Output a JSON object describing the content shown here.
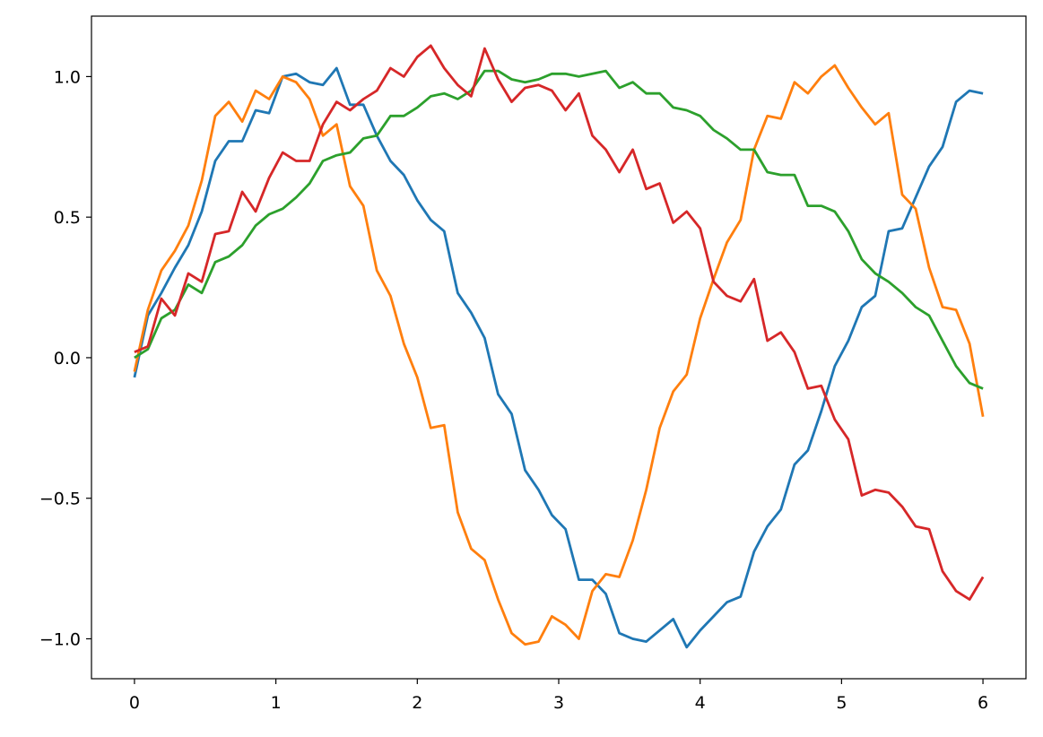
{
  "chart_data": {
    "type": "line",
    "title": "",
    "xlabel": "",
    "ylabel": "",
    "xlim": [
      -0.304,
      6.304
    ],
    "ylim": [
      -1.142,
      1.215
    ],
    "grid": false,
    "xticks": [
      0,
      1,
      2,
      3,
      4,
      5,
      6
    ],
    "xtick_labels": [
      "0",
      "1",
      "2",
      "3",
      "4",
      "5",
      "6"
    ],
    "yticks": [
      -1.0,
      -0.5,
      0.0,
      0.5,
      1.0
    ],
    "ytick_labels": [
      "−1.0",
      "−0.5",
      "0.0",
      "0.5",
      "1.0"
    ],
    "x": [
      0,
      0.095,
      0.19,
      0.286,
      0.381,
      0.476,
      0.571,
      0.667,
      0.762,
      0.857,
      0.952,
      1.048,
      1.143,
      1.238,
      1.333,
      1.429,
      1.524,
      1.619,
      1.714,
      1.81,
      1.905,
      2.0,
      2.095,
      2.19,
      2.286,
      2.381,
      2.476,
      2.571,
      2.667,
      2.762,
      2.857,
      2.952,
      3.048,
      3.143,
      3.238,
      3.333,
      3.429,
      3.524,
      3.619,
      3.714,
      3.81,
      3.905,
      4.0,
      4.095,
      4.19,
      4.286,
      4.381,
      4.476,
      4.571,
      4.667,
      4.762,
      4.857,
      4.952,
      5.048,
      5.143,
      5.238,
      5.333,
      5.429,
      5.524,
      5.619,
      5.714,
      5.81,
      5.905,
      6.0
    ],
    "series": [
      {
        "color": "#1f77b4",
        "values": [
          -0.07,
          0.15,
          0.23,
          0.32,
          0.4,
          0.52,
          0.7,
          0.77,
          0.77,
          0.88,
          0.87,
          1.0,
          1.01,
          0.98,
          0.97,
          1.03,
          0.9,
          0.9,
          0.79,
          0.7,
          0.65,
          0.56,
          0.49,
          0.45,
          0.23,
          0.16,
          0.07,
          -0.13,
          -0.2,
          -0.4,
          -0.47,
          -0.56,
          -0.61,
          -0.79,
          -0.79,
          -0.84,
          -0.98,
          -1.0,
          -1.01,
          -0.97,
          -0.93,
          -1.03,
          -0.97,
          -0.92,
          -0.87,
          -0.85,
          -0.69,
          -0.6,
          -0.54,
          -0.38,
          -0.33,
          -0.19,
          -0.03,
          0.06,
          0.18,
          0.22,
          0.45,
          0.46,
          0.57,
          0.68,
          0.75,
          0.91,
          0.95,
          0.94
        ]
      },
      {
        "color": "#ff7f0e",
        "values": [
          -0.05,
          0.17,
          0.31,
          0.38,
          0.47,
          0.63,
          0.86,
          0.91,
          0.84,
          0.95,
          0.92,
          1.0,
          0.98,
          0.92,
          0.79,
          0.83,
          0.61,
          0.54,
          0.31,
          0.22,
          0.05,
          -0.07,
          -0.25,
          -0.24,
          -0.55,
          -0.68,
          -0.72,
          -0.86,
          -0.98,
          -1.02,
          -1.01,
          -0.92,
          -0.95,
          -1.0,
          -0.83,
          -0.77,
          -0.78,
          -0.65,
          -0.47,
          -0.25,
          -0.12,
          -0.06,
          0.14,
          0.28,
          0.41,
          0.49,
          0.74,
          0.86,
          0.85,
          0.98,
          0.94,
          1.0,
          1.04,
          0.96,
          0.89,
          0.83,
          0.87,
          0.58,
          0.53,
          0.32,
          0.18,
          0.17,
          0.05,
          -0.21
        ]
      },
      {
        "color": "#2ca02c",
        "values": [
          0.0,
          0.03,
          0.14,
          0.17,
          0.26,
          0.23,
          0.34,
          0.36,
          0.4,
          0.47,
          0.51,
          0.53,
          0.57,
          0.62,
          0.7,
          0.72,
          0.73,
          0.78,
          0.79,
          0.86,
          0.86,
          0.89,
          0.93,
          0.94,
          0.92,
          0.95,
          1.02,
          1.02,
          0.99,
          0.98,
          0.99,
          1.01,
          1.01,
          1.0,
          1.01,
          1.02,
          0.96,
          0.98,
          0.94,
          0.94,
          0.89,
          0.88,
          0.86,
          0.81,
          0.78,
          0.74,
          0.74,
          0.66,
          0.65,
          0.65,
          0.54,
          0.54,
          0.52,
          0.45,
          0.35,
          0.3,
          0.27,
          0.23,
          0.18,
          0.15,
          0.06,
          -0.03,
          -0.09,
          -0.11
        ]
      },
      {
        "color": "#d62728",
        "values": [
          0.02,
          0.04,
          0.21,
          0.15,
          0.3,
          0.27,
          0.44,
          0.45,
          0.59,
          0.52,
          0.64,
          0.73,
          0.7,
          0.7,
          0.83,
          0.91,
          0.88,
          0.92,
          0.95,
          1.03,
          1.0,
          1.07,
          1.11,
          1.03,
          0.97,
          0.93,
          1.1,
          0.99,
          0.91,
          0.96,
          0.97,
          0.95,
          0.88,
          0.94,
          0.79,
          0.74,
          0.66,
          0.74,
          0.6,
          0.62,
          0.48,
          0.52,
          0.46,
          0.27,
          0.22,
          0.2,
          0.28,
          0.06,
          0.09,
          0.02,
          -0.11,
          -0.1,
          -0.22,
          -0.29,
          -0.49,
          -0.47,
          -0.48,
          -0.53,
          -0.6,
          -0.61,
          -0.76,
          -0.83,
          -0.86,
          -0.78
        ]
      }
    ]
  }
}
